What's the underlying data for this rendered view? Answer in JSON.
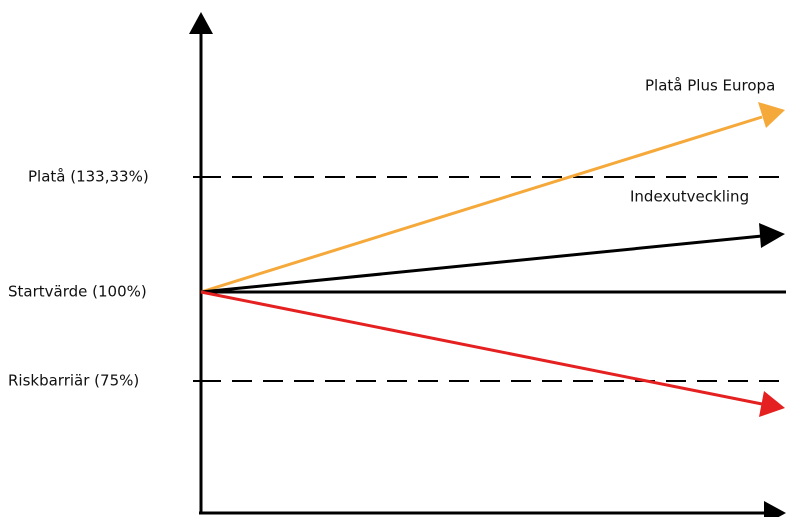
{
  "labels": {
    "plata": "Platå (133,33%)",
    "start": "Startvärde (100%)",
    "risk": "Riskbarriär (75%)",
    "product": "Platå Plus Europa",
    "index": "Indexutveckling"
  },
  "colors": {
    "axis": "#000000",
    "product_arrow": "#f5a93a",
    "index_arrow": "#000000",
    "down_arrow": "#e52020",
    "dashed": "#000000"
  },
  "levels": {
    "plata_percent": 133.33,
    "start_percent": 100,
    "risk_percent": 75
  }
}
